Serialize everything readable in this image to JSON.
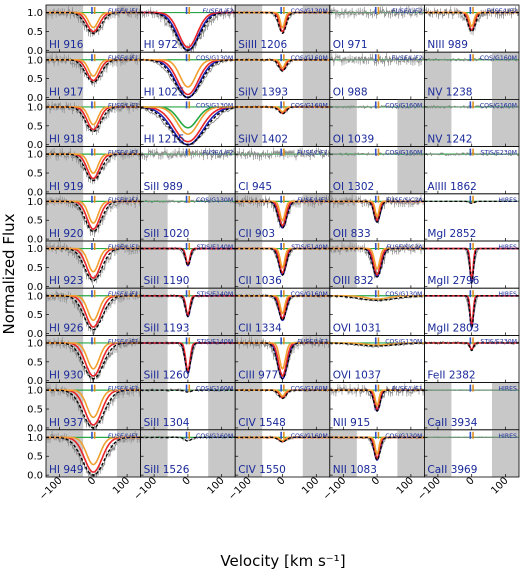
{
  "chart_data": {
    "type": "line",
    "xlabel": "Velocity [km s⁻¹]",
    "ylabel": "Normalized Flux",
    "xlim": [
      -140,
      140
    ],
    "ylim": [
      -0.05,
      1.2
    ],
    "xticks": [
      "−100",
      "0",
      "100"
    ],
    "yticks": [
      "0.0",
      "0.5",
      "1.0"
    ],
    "grid": false,
    "colors": {
      "data": "#8c8c8c",
      "mask": "#c8c8c8",
      "total_model": "#000000",
      "comp_red": "#e8262a",
      "comp_blue": "#1f1fb0",
      "comp_orange": "#f0a030",
      "comp_green": "#27a844",
      "marker_blue": "#3050c8",
      "marker_orange": "#e09020",
      "text": "#1a2a9a"
    },
    "component_velocities_kms": [
      -4,
      4
    ],
    "columns": [
      [
        {
          "ion": "HI 916",
          "inst": "FUSE/LiF1",
          "depth": 0.55,
          "width": 25,
          "models": [
            "red",
            "orange"
          ],
          "mask": [
            [
              -140,
              -30
            ],
            [
              70,
              140
            ]
          ]
        },
        {
          "ion": "HI 917",
          "inst": "FUSE/LiF1",
          "depth": 0.6,
          "width": 25,
          "models": [
            "red",
            "orange"
          ],
          "mask": [
            [
              -140,
              -30
            ],
            [
              70,
              140
            ]
          ]
        },
        {
          "ion": "HI 918",
          "inst": "FUSE/LiF1",
          "depth": 0.65,
          "width": 25,
          "models": [
            "red",
            "orange"
          ],
          "mask": [
            [
              -140,
              -30
            ],
            [
              70,
              140
            ]
          ]
        },
        {
          "ion": "HI 919",
          "inst": "FUSE/LiF1",
          "depth": 0.7,
          "width": 25,
          "models": [
            "red",
            "orange"
          ],
          "mask": [
            [
              -140,
              -30
            ],
            [
              70,
              140
            ]
          ]
        },
        {
          "ion": "HI 920",
          "inst": "FUSE/LiF1",
          "depth": 0.8,
          "width": 26,
          "models": [
            "red",
            "orange"
          ],
          "mask": [
            [
              -140,
              -30
            ],
            [
              70,
              140
            ]
          ]
        },
        {
          "ion": "HI 923",
          "inst": "FUSE/LiF1",
          "depth": 0.85,
          "width": 28,
          "models": [
            "red",
            "orange"
          ],
          "mask": [
            [
              -140,
              -30
            ],
            [
              70,
              140
            ]
          ]
        },
        {
          "ion": "HI 926",
          "inst": "FUSE/LiF1",
          "depth": 0.9,
          "width": 30,
          "models": [
            "red",
            "orange"
          ],
          "mask": [
            [
              -140,
              -30
            ],
            [
              70,
              140
            ]
          ]
        },
        {
          "ion": "HI 930",
          "inst": "FUSE/LiF1",
          "depth": 0.95,
          "width": 32,
          "models": [
            "red",
            "orange"
          ],
          "mask": [
            [
              -140,
              -30
            ],
            [
              70,
              140
            ]
          ]
        },
        {
          "ion": "HI 937",
          "inst": "FUSE/LiF1",
          "depth": 1.0,
          "width": 34,
          "models": [
            "red",
            "orange"
          ],
          "mask": [
            [
              -140,
              -30
            ],
            [
              70,
              140
            ]
          ]
        },
        {
          "ion": "HI 949",
          "inst": "FUSE/LiF1",
          "depth": 1.0,
          "width": 36,
          "models": [
            "red",
            "orange"
          ],
          "mask": [
            [
              -140,
              -30
            ],
            [
              70,
              140
            ]
          ]
        }
      ],
      [
        {
          "ion": "HI 972",
          "inst": "FUSE/LiF2",
          "depth": 1.0,
          "width": 38,
          "models": [
            "blue",
            "red"
          ],
          "mask": []
        },
        {
          "ion": "HI 1025",
          "inst": "COS/G130M",
          "depth": 1.0,
          "width": 42,
          "models": [
            "blue",
            "red",
            "orange"
          ],
          "mask": []
        },
        {
          "ion": "HI 1215",
          "inst": "COS/G130M",
          "depth": 1.0,
          "width": 55,
          "models": [
            "blue",
            "red",
            "green",
            "orange"
          ],
          "mask": []
        },
        {
          "ion": "SiII 989",
          "inst": "FUSE/LiF2",
          "depth": 0.0,
          "width": 12,
          "models": [],
          "mask": []
        },
        {
          "ion": "SiII 1020",
          "inst": "COS/G130M",
          "depth": 0.0,
          "width": 12,
          "models": [],
          "mask": [
            [
              -140,
              -60
            ],
            [
              60,
              140
            ]
          ]
        },
        {
          "ion": "SiII 1190",
          "inst": "STIS/E140M",
          "depth": 0.45,
          "width": 8,
          "models": [
            "blue",
            "red"
          ],
          "mask": [
            [
              -140,
              -60
            ],
            [
              60,
              140
            ]
          ]
        },
        {
          "ion": "SiII 1193",
          "inst": "STIS/E140M",
          "depth": 0.55,
          "width": 8,
          "models": [
            "blue",
            "red"
          ],
          "mask": [
            [
              -140,
              -60
            ],
            [
              60,
              140
            ]
          ]
        },
        {
          "ion": "SiII 1260",
          "inst": "STIS/E140M",
          "depth": 0.8,
          "width": 9,
          "models": [
            "blue",
            "red"
          ],
          "mask": [
            [
              -140,
              -60
            ],
            [
              60,
              140
            ]
          ]
        },
        {
          "ion": "SiII 1304",
          "inst": "COS/G160M",
          "depth": 0.05,
          "width": 10,
          "models": [],
          "mask": [
            [
              -140,
              -60
            ],
            [
              60,
              140
            ]
          ]
        },
        {
          "ion": "SiII 1526",
          "inst": "COS/G160M",
          "depth": 0.1,
          "width": 10,
          "models": [],
          "mask": [
            [
              -140,
              -60
            ],
            [
              60,
              140
            ]
          ]
        }
      ],
      [
        {
          "ion": "SiIII 1206",
          "inst": "COS/G130M",
          "depth": 0.55,
          "width": 12,
          "models": [
            "red",
            "orange"
          ],
          "mask": [
            [
              -140,
              -60
            ],
            [
              60,
              140
            ]
          ]
        },
        {
          "ion": "SiIV 1393",
          "inst": "COS/G160M",
          "depth": 0.3,
          "width": 12,
          "models": [
            "red",
            "orange"
          ],
          "mask": [
            [
              -140,
              -60
            ],
            [
              60,
              140
            ]
          ]
        },
        {
          "ion": "SiIV 1402",
          "inst": "COS/G160M",
          "depth": 0.18,
          "width": 12,
          "models": [
            "red",
            "orange"
          ],
          "mask": [
            [
              -140,
              -60
            ],
            [
              60,
              140
            ]
          ]
        },
        {
          "ion": "CI 945",
          "inst": "FUSE/LiF1",
          "depth": 0.0,
          "width": 12,
          "models": [],
          "mask": []
        },
        {
          "ion": "CII 903",
          "inst": "FUSE/LiF1",
          "depth": 0.7,
          "width": 14,
          "models": [
            "blue",
            "red",
            "orange"
          ],
          "mask": [
            [
              -140,
              -60
            ],
            [
              60,
              140
            ]
          ]
        },
        {
          "ion": "CII 1036",
          "inst": "STIS/E140M",
          "depth": 0.7,
          "width": 12,
          "models": [
            "blue",
            "red",
            "orange"
          ],
          "mask": [
            [
              -140,
              -60
            ],
            [
              60,
              140
            ]
          ]
        },
        {
          "ion": "CII 1334",
          "inst": "COS/G160M",
          "depth": 0.65,
          "width": 12,
          "models": [
            "blue",
            "red",
            "orange"
          ],
          "mask": [
            [
              -140,
              -60
            ],
            [
              60,
              140
            ]
          ]
        },
        {
          "ion": "CIII 977",
          "inst": "FUSE/LiF2",
          "depth": 0.95,
          "width": 16,
          "models": [
            "blue",
            "red",
            "orange"
          ],
          "mask": [
            [
              -140,
              -60
            ],
            [
              60,
              140
            ]
          ]
        },
        {
          "ion": "CIV 1548",
          "inst": "COS/G160M",
          "depth": 0.22,
          "width": 12,
          "models": [
            "red",
            "orange"
          ],
          "mask": [
            [
              -140,
              -60
            ],
            [
              60,
              140
            ]
          ]
        },
        {
          "ion": "CIV 1550",
          "inst": "COS/G160M",
          "depth": 0.12,
          "width": 12,
          "models": [
            "red",
            "orange"
          ],
          "mask": [
            [
              -140,
              -60
            ],
            [
              60,
              140
            ]
          ]
        }
      ],
      [
        {
          "ion": "OI 971",
          "inst": "FUSE/LiF2",
          "depth": 0.0,
          "width": 12,
          "models": [],
          "mask": []
        },
        {
          "ion": "OI 988",
          "inst": "FUSE/LiF2",
          "depth": 0.0,
          "width": 12,
          "models": [],
          "mask": []
        },
        {
          "ion": "OI 1039",
          "inst": "COS/G160M",
          "depth": 0.0,
          "width": 12,
          "models": [],
          "mask": [
            [
              -140,
              -60
            ],
            [
              60,
              140
            ]
          ]
        },
        {
          "ion": "OI 1302",
          "inst": "COS/G160M",
          "depth": 0.0,
          "width": 12,
          "models": [],
          "mask": [
            [
              -140,
              -60
            ],
            [
              60,
              140
            ]
          ]
        },
        {
          "ion": "OII 833",
          "inst": "FUSE/SiC2A",
          "depth": 0.55,
          "width": 10,
          "models": [
            "blue",
            "red",
            "orange"
          ],
          "mask": [
            [
              -140,
              -60
            ]
          ]
        },
        {
          "ion": "OIII 832",
          "inst": "FUSE/SiC2A",
          "depth": 0.75,
          "width": 14,
          "models": [
            "blue",
            "red",
            "orange"
          ],
          "mask": [
            [
              -140,
              -60
            ]
          ]
        },
        {
          "ion": "OVI 1031",
          "inst": "COS/G130M",
          "depth": 0.12,
          "width": 60,
          "models": [
            "orange"
          ],
          "mask": []
        },
        {
          "ion": "OVI 1037",
          "inst": "COS/G130M",
          "depth": 0.08,
          "width": 60,
          "models": [
            "orange"
          ],
          "mask": []
        },
        {
          "ion": "NII 915",
          "inst": "FUSE/LiF1",
          "depth": 0.55,
          "width": 10,
          "models": [
            "blue",
            "red",
            "orange"
          ],
          "mask": []
        },
        {
          "ion": "NII 1083",
          "inst": "COS/G130M",
          "depth": 0.6,
          "width": 10,
          "models": [
            "blue",
            "red",
            "orange"
          ],
          "mask": [
            [
              -140,
              -60
            ],
            [
              60,
              140
            ]
          ]
        }
      ],
      [
        {
          "ion": "NIII 989",
          "inst": "FUSE/LiF2",
          "depth": 0.5,
          "width": 12,
          "models": [
            "red",
            "orange"
          ],
          "mask": []
        },
        {
          "ion": "NV 1238",
          "inst": "COS/G160M",
          "depth": 0.0,
          "width": 12,
          "models": [],
          "mask": [
            [
              -140,
              -60
            ],
            [
              60,
              140
            ]
          ]
        },
        {
          "ion": "NV 1242",
          "inst": "COS/G160M",
          "depth": 0.0,
          "width": 12,
          "models": [],
          "mask": [
            [
              -140,
              -60
            ],
            [
              60,
              140
            ]
          ]
        },
        {
          "ion": "AlIII 1862",
          "inst": "STIS/E230M",
          "depth": 0.0,
          "width": 12,
          "models": [],
          "mask": []
        },
        {
          "ion": "MgI 2852",
          "inst": "HIRES",
          "depth": 0.05,
          "width": 8,
          "models": [],
          "mask": []
        },
        {
          "ion": "MgII 2796",
          "inst": "HIRES",
          "depth": 0.9,
          "width": 6,
          "models": [
            "blue",
            "red"
          ],
          "mask": []
        },
        {
          "ion": "MgII 2803",
          "inst": "HIRES",
          "depth": 0.85,
          "width": 6,
          "models": [
            "blue",
            "red"
          ],
          "mask": []
        },
        {
          "ion": "FeII 2382",
          "inst": "STIS/E230M",
          "depth": 0.2,
          "width": 6,
          "models": [
            "red"
          ],
          "mask": []
        },
        {
          "ion": "CaII 3934",
          "inst": "HIRES",
          "depth": 0.0,
          "width": 6,
          "models": [],
          "mask": [
            [
              -140,
              -60
            ],
            [
              60,
              140
            ]
          ]
        },
        {
          "ion": "CaII 3969",
          "inst": "HIRES",
          "depth": 0.0,
          "width": 6,
          "models": [],
          "mask": [
            [
              -140,
              -60
            ],
            [
              60,
              140
            ]
          ]
        }
      ]
    ]
  }
}
